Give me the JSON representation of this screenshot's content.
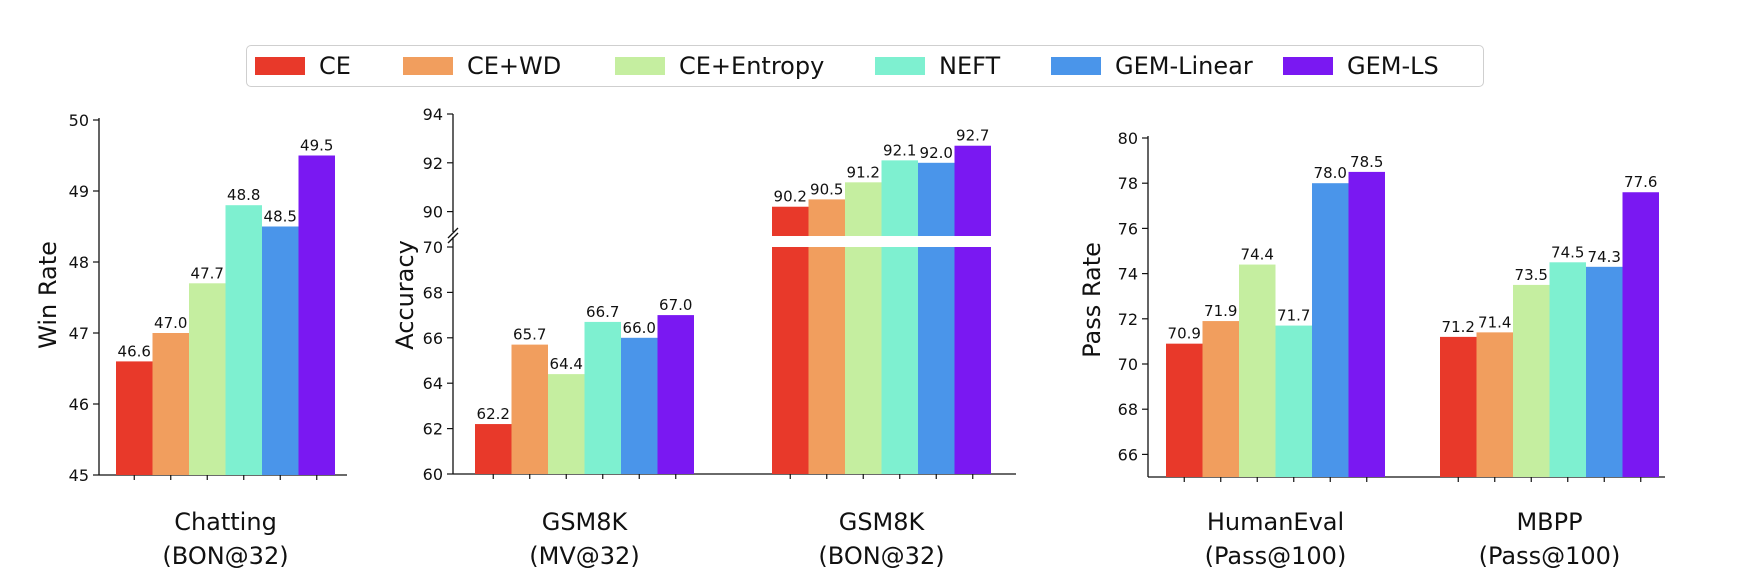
{
  "legend": {
    "items": [
      {
        "label": "CE",
        "color": "#e8392a"
      },
      {
        "label": "CE+WD",
        "color": "#f19e5e"
      },
      {
        "label": "CE+Entropy",
        "color": "#c5eea0"
      },
      {
        "label": "NEFT",
        "color": "#7ef0d0"
      },
      {
        "label": "GEM-Linear",
        "color": "#4a95ea"
      },
      {
        "label": "GEM-LS",
        "color": "#7a18f2"
      }
    ]
  },
  "chart_data": [
    {
      "type": "bar",
      "ylabel": "Win Rate",
      "ylim": [
        45,
        50
      ],
      "yticks": [
        45,
        46,
        47,
        48,
        49,
        50
      ],
      "groups": [
        {
          "label_lines": [
            "Chatting",
            "(BON@32)"
          ],
          "values": [
            46.6,
            47.0,
            47.7,
            48.8,
            48.5,
            49.5
          ]
        }
      ]
    },
    {
      "type": "bar",
      "ylabel": "Accuracy",
      "broken_axis": true,
      "lower_ylim": [
        60,
        70
      ],
      "lower_yticks": [
        60,
        62,
        64,
        66,
        68,
        70
      ],
      "upper_ylim": [
        89,
        94
      ],
      "upper_yticks": [
        90,
        92,
        94
      ],
      "groups": [
        {
          "label_lines": [
            "GSM8K",
            "(MV@32)"
          ],
          "values": [
            62.2,
            65.7,
            64.4,
            66.7,
            66.0,
            67.0
          ]
        },
        {
          "label_lines": [
            "GSM8K",
            "(BON@32)"
          ],
          "values": [
            90.2,
            90.5,
            91.2,
            92.1,
            92.0,
            92.7
          ]
        }
      ]
    },
    {
      "type": "bar",
      "ylabel": "Pass Rate",
      "ylim": [
        65,
        80
      ],
      "yticks": [
        66,
        68,
        70,
        72,
        74,
        76,
        78,
        80
      ],
      "groups": [
        {
          "label_lines": [
            "HumanEval",
            "(Pass@100)"
          ],
          "values": [
            70.9,
            71.9,
            74.4,
            71.7,
            78.0,
            78.5
          ]
        },
        {
          "label_lines": [
            "MBPP",
            "(Pass@100)"
          ],
          "values": [
            71.2,
            71.4,
            73.5,
            74.5,
            74.3,
            77.6
          ]
        }
      ]
    }
  ]
}
